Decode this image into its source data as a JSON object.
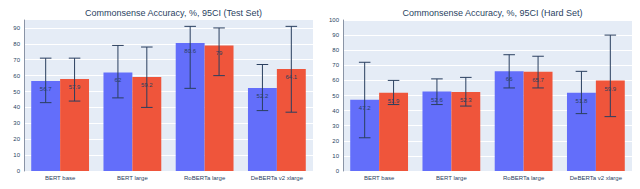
{
  "chart_data": [
    {
      "type": "bar",
      "title": "Commonsense Accuracy, %, 95CI (Test Set)",
      "categories": [
        "BERT base",
        "BERT large",
        "RoBERTa large",
        "DeBERTa v2 xlarge"
      ],
      "series": [
        {
          "color": "#636efa",
          "values": [
            56.7,
            62,
            80.6,
            52.2
          ],
          "ci_low": [
            43,
            46,
            52,
            38
          ],
          "ci_high": [
            71,
            79,
            91,
            67
          ]
        },
        {
          "color": "#ef553b",
          "values": [
            57.9,
            59.2,
            79,
            64.1
          ],
          "ci_low": [
            44,
            40,
            60,
            37
          ],
          "ci_high": [
            71,
            78,
            90,
            91
          ]
        }
      ],
      "ylim": [
        0,
        95
      ],
      "yticks": [
        0,
        10,
        20,
        30,
        40,
        50,
        60,
        70,
        80,
        90
      ],
      "grid": true,
      "data_labels": true
    },
    {
      "type": "bar",
      "title": "Commonsense Accuracy, %, 95CI (Hard Set)",
      "categories": [
        "BERT base",
        "BERT large",
        "RoBERTa large",
        "DeBERTa v2 xlarge"
      ],
      "series": [
        {
          "color": "#636efa",
          "values": [
            47.2,
            52.6,
            66,
            51.8
          ],
          "ci_low": [
            22,
            44,
            55,
            38
          ],
          "ci_high": [
            72,
            61,
            77,
            66
          ]
        },
        {
          "color": "#ef553b",
          "values": [
            51.9,
            52.3,
            65.7,
            59.9
          ],
          "ci_low": [
            44,
            43,
            55,
            36
          ],
          "ci_high": [
            60,
            62,
            76,
            90
          ]
        }
      ],
      "ylim": [
        0,
        100
      ],
      "yticks": [
        0,
        10,
        20,
        30,
        40,
        50,
        60,
        70,
        80,
        90,
        100
      ],
      "grid": true,
      "data_labels": true
    }
  ]
}
